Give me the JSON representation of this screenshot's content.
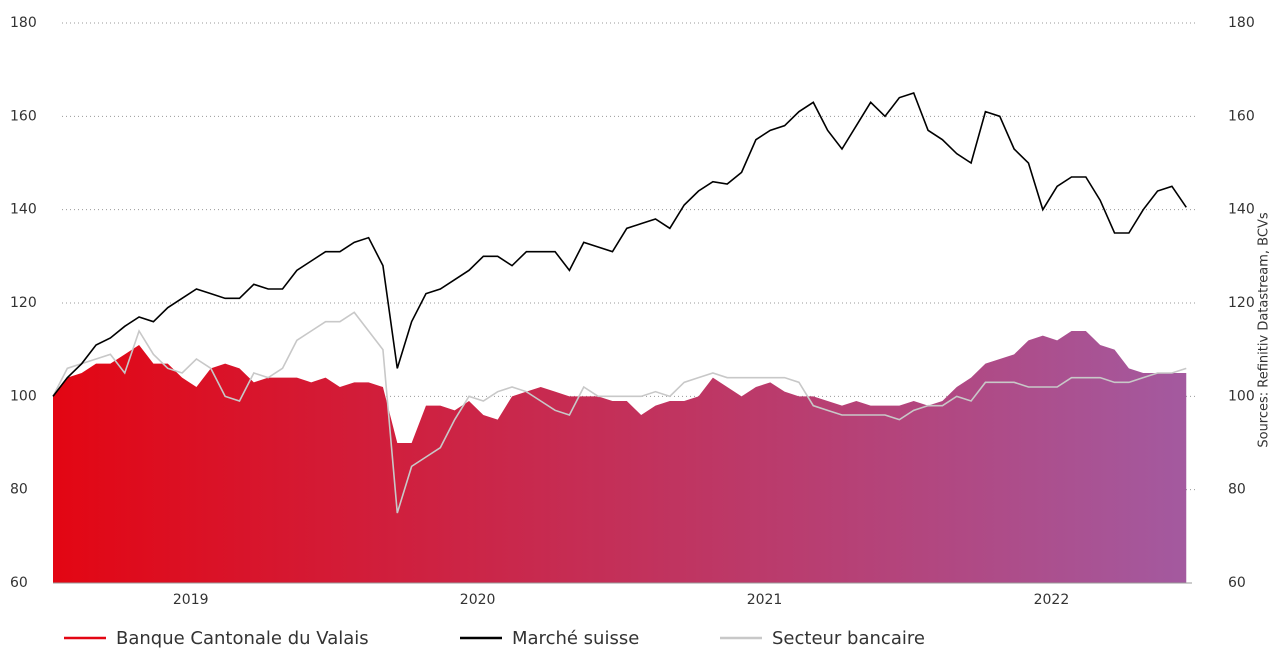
{
  "chart_data": {
    "type": "line",
    "x": [
      2018.52,
      2018.57,
      2018.62,
      2018.67,
      2018.72,
      2018.77,
      2018.82,
      2018.87,
      2018.92,
      2018.97,
      2019.02,
      2019.07,
      2019.12,
      2019.17,
      2019.22,
      2019.27,
      2019.32,
      2019.37,
      2019.42,
      2019.47,
      2019.52,
      2019.57,
      2019.62,
      2019.67,
      2019.72,
      2019.77,
      2019.82,
      2019.87,
      2019.92,
      2019.97,
      2020.02,
      2020.07,
      2020.12,
      2020.17,
      2020.22,
      2020.27,
      2020.32,
      2020.37,
      2020.42,
      2020.47,
      2020.52,
      2020.57,
      2020.62,
      2020.67,
      2020.72,
      2020.77,
      2020.82,
      2020.87,
      2020.92,
      2020.97,
      2021.02,
      2021.07,
      2021.12,
      2021.17,
      2021.22,
      2021.27,
      2021.32,
      2021.37,
      2021.42,
      2021.47,
      2021.52,
      2021.57,
      2021.62,
      2021.67,
      2021.72,
      2021.77,
      2021.82,
      2021.87,
      2021.92,
      2021.97,
      2022.02,
      2022.07,
      2022.12,
      2022.17,
      2022.22,
      2022.27,
      2022.32,
      2022.37,
      2022.42,
      2022.47
    ],
    "series": [
      {
        "name": "Banque Cantonale du Valais",
        "color": "#e30613",
        "gradient_end": "#a35aa0",
        "style": "area",
        "values": [
          100,
          104,
          105,
          107,
          107,
          109,
          111,
          107,
          107,
          104,
          102,
          106,
          107,
          106,
          103,
          104,
          104,
          104,
          103,
          104,
          102,
          103,
          103,
          102,
          90,
          90,
          98,
          98,
          97,
          99,
          96,
          95,
          100,
          101,
          102,
          101,
          100,
          100,
          100,
          99,
          99,
          96,
          98,
          99,
          99,
          100,
          104,
          102,
          100,
          102,
          103,
          101,
          100,
          100,
          99,
          98,
          99,
          98,
          98,
          98,
          99,
          98,
          99,
          102,
          104,
          107,
          108,
          109,
          112,
          113,
          112,
          114,
          114,
          111,
          110,
          106,
          105,
          105,
          105,
          105
        ]
      },
      {
        "name": "Marché suisse",
        "color": "#000000",
        "style": "line",
        "values": [
          100,
          104,
          107,
          111,
          112.5,
          115,
          117,
          116,
          119,
          121,
          123,
          122,
          121,
          121,
          124,
          123,
          123,
          127,
          129,
          131,
          131,
          133,
          134,
          128,
          106,
          116,
          122,
          123,
          125,
          127,
          130,
          130,
          128,
          131,
          131,
          131,
          127,
          133,
          132,
          131,
          136,
          137,
          138,
          136,
          141,
          144,
          146,
          145.5,
          148,
          155,
          157,
          158,
          161,
          163,
          157,
          153,
          158,
          163,
          160,
          164,
          165,
          157,
          155,
          152,
          150,
          161,
          160,
          153,
          150,
          140,
          145,
          147,
          147,
          142,
          135,
          135,
          140,
          144,
          145,
          140.5
        ]
      },
      {
        "name": "Secteur bancaire",
        "color": "#c8c8c8",
        "style": "line",
        "values": [
          100,
          106,
          107,
          108,
          109,
          105,
          114,
          109,
          106,
          105,
          108,
          106,
          100,
          99,
          105,
          104,
          106,
          112,
          114,
          116,
          116,
          118,
          114,
          110,
          75,
          85,
          87,
          89,
          95,
          100,
          99,
          101,
          102,
          101,
          99,
          97,
          96,
          102,
          100,
          100,
          100,
          100,
          101,
          100,
          103,
          104,
          105,
          104,
          104,
          104,
          104,
          104,
          103,
          98,
          97,
          96,
          96,
          96,
          96,
          95,
          97,
          98,
          98,
          100,
          99,
          103,
          103,
          103,
          102,
          102,
          102,
          104,
          104,
          104,
          103,
          103,
          104,
          105,
          105,
          106
        ]
      }
    ],
    "xlim": [
      2018.52,
      2022.49
    ],
    "xticks": [
      2019,
      2020,
      2021,
      2022
    ],
    "ylim": [
      60,
      180
    ],
    "yticks": [
      60,
      80,
      100,
      120,
      140,
      160,
      180
    ],
    "grid": true,
    "source": "Sources: Refinitiv Datastream, BCVs"
  }
}
